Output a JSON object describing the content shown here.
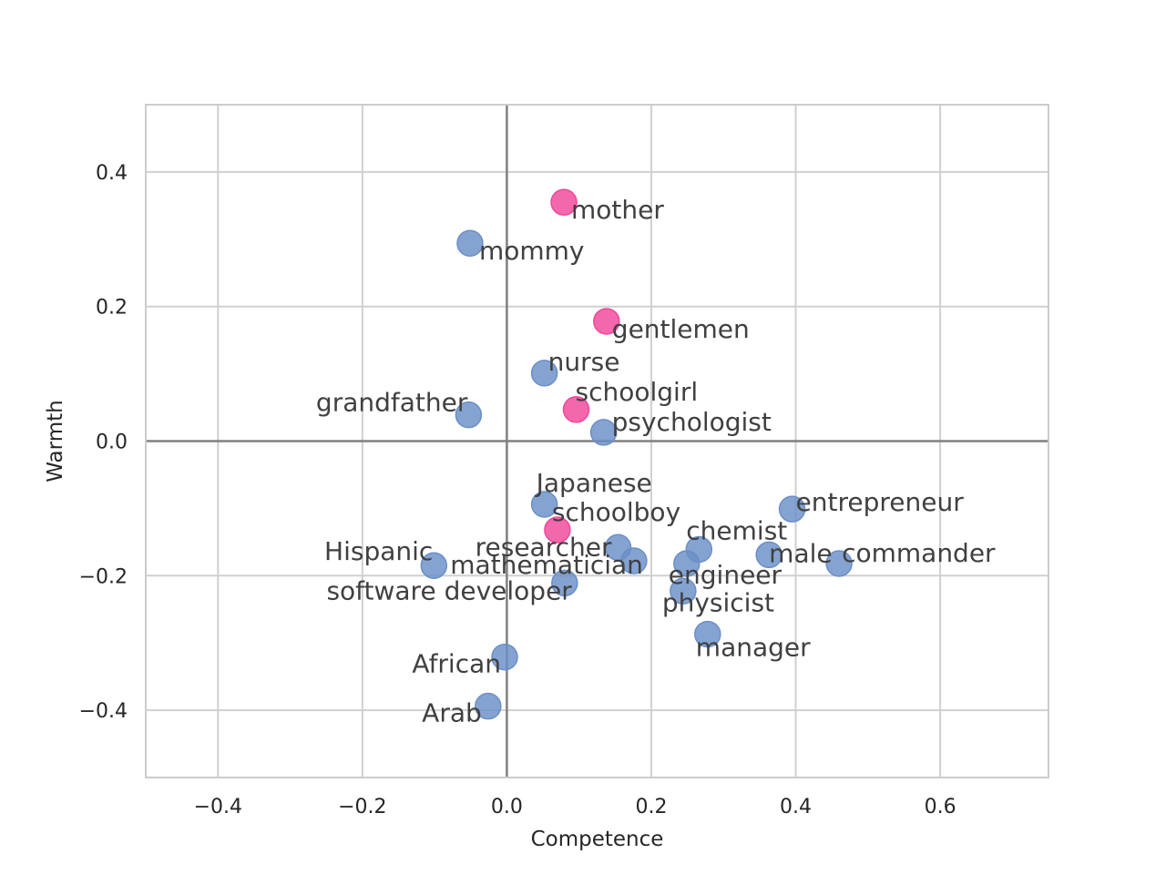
{
  "chart_data": {
    "type": "scatter",
    "xlabel": "Competence",
    "ylabel": "Warmth",
    "xlim": [
      -0.5,
      0.75
    ],
    "ylim": [
      -0.5,
      0.5
    ],
    "xticks": [
      -0.4,
      -0.2,
      0.0,
      0.2,
      0.4,
      0.6
    ],
    "xtick_labels": [
      "−0.4",
      "−0.2",
      "0.0",
      "0.2",
      "0.4",
      "0.6"
    ],
    "yticks": [
      -0.4,
      -0.2,
      0.0,
      0.2,
      0.4
    ],
    "ytick_labels": [
      "−0.4",
      "−0.2",
      "0.0",
      "0.2",
      "0.4"
    ],
    "grid": true,
    "zero_lines": true,
    "colors": {
      "blue": "#6a8fc7",
      "pink": "#f0479a"
    },
    "points": [
      {
        "label": "mother",
        "x": 0.079,
        "y": 0.355,
        "color": "pink",
        "anchor": "start",
        "dx": 8,
        "dy": 18
      },
      {
        "label": "mommy",
        "x": -0.051,
        "y": 0.294,
        "color": "blue",
        "anchor": "start",
        "dx": 10,
        "dy": 18
      },
      {
        "label": "gentlemen",
        "x": 0.138,
        "y": 0.178,
        "color": "pink",
        "anchor": "start",
        "dx": 6,
        "dy": 18
      },
      {
        "label": "nurse",
        "x": 0.052,
        "y": 0.101,
        "color": "blue",
        "anchor": "start",
        "dx": 4,
        "dy": -3
      },
      {
        "label": "schoolgirl",
        "x": 0.096,
        "y": 0.047,
        "color": "pink",
        "anchor": "start",
        "dx": -1,
        "dy": -10
      },
      {
        "label": "grandfather",
        "x": -0.053,
        "y": 0.039,
        "color": "blue",
        "anchor": "end",
        "dx": -1,
        "dy": -4
      },
      {
        "label": "psychologist",
        "x": 0.134,
        "y": 0.013,
        "color": "blue",
        "anchor": "start",
        "dx": 9,
        "dy": -2
      },
      {
        "label": "Japanese",
        "x": 0.052,
        "y": -0.094,
        "color": "blue",
        "anchor": "start",
        "dx": -9,
        "dy": -14
      },
      {
        "label": "schoolboy",
        "x": 0.07,
        "y": -0.132,
        "color": "pink",
        "anchor": "start",
        "dx": -6,
        "dy": -10
      },
      {
        "label": "entrepreneur",
        "x": 0.395,
        "y": -0.101,
        "color": "blue",
        "anchor": "start",
        "dx": 4,
        "dy": 2
      },
      {
        "label": "chemist",
        "x": 0.266,
        "y": -0.161,
        "color": "blue",
        "anchor": "start",
        "dx": -14,
        "dy": -11
      },
      {
        "label": "researcher",
        "x": 0.154,
        "y": -0.158,
        "color": "blue",
        "anchor": "end",
        "dx": -7,
        "dy": 9
      },
      {
        "label": "male",
        "x": 0.363,
        "y": -0.169,
        "color": "blue",
        "anchor": "start",
        "dx": 0,
        "dy": 8
      },
      {
        "label": "commander",
        "x": 0.46,
        "y": -0.182,
        "color": "blue",
        "anchor": "start",
        "dx": 3,
        "dy": -2
      },
      {
        "label": "Hispanic",
        "x": -0.101,
        "y": -0.185,
        "color": "blue",
        "anchor": "end",
        "dx": -1,
        "dy": -6
      },
      {
        "label": "mathematician",
        "x": 0.176,
        "y": -0.178,
        "color": "blue",
        "anchor": "end",
        "dx": 10,
        "dy": 14
      },
      {
        "label": "engineer",
        "x": 0.249,
        "y": -0.182,
        "color": "blue",
        "anchor": "start",
        "dx": -20,
        "dy": 22
      },
      {
        "label": "software developer",
        "x": 0.08,
        "y": -0.211,
        "color": "blue",
        "anchor": "end",
        "dx": 8,
        "dy": 18
      },
      {
        "label": "physicist",
        "x": 0.244,
        "y": -0.223,
        "color": "blue",
        "anchor": "start",
        "dx": -23,
        "dy": 22
      },
      {
        "label": "manager",
        "x": 0.278,
        "y": -0.287,
        "color": "blue",
        "anchor": "start",
        "dx": -13,
        "dy": 24
      },
      {
        "label": "African",
        "x": -0.003,
        "y": -0.321,
        "color": "blue",
        "anchor": "end",
        "dx": -4,
        "dy": 17
      },
      {
        "label": "Arab",
        "x": -0.026,
        "y": -0.394,
        "color": "blue",
        "anchor": "end",
        "dx": -7,
        "dy": 17
      }
    ]
  }
}
